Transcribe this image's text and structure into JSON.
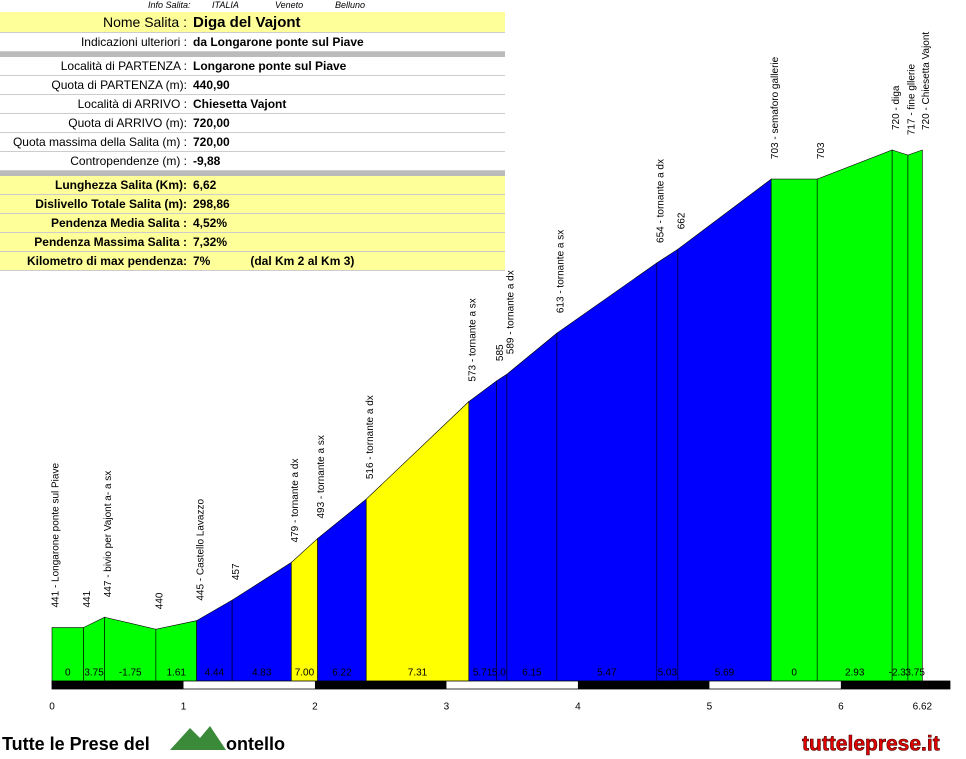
{
  "info": {
    "header": [
      "Info Salita:",
      "ITALIA",
      "Veneto",
      "Belluno"
    ],
    "title": [
      "Nome Salita :",
      "Diga del Vajont"
    ],
    "rows_top": [
      [
        "Indicazioni ulteriori :",
        "da Longarone ponte sul Piave"
      ]
    ],
    "rows_mid": [
      [
        "Località di PARTENZA :",
        "Longarone ponte sul Piave"
      ],
      [
        "Quota di PARTENZA (m):",
        "440,90"
      ],
      [
        "Località di ARRIVO :",
        "Chiesetta Vajont"
      ],
      [
        "Quota di ARRIVO (m):",
        "720,00"
      ],
      [
        "Quota massima della Salita (m) :",
        "720,00"
      ],
      [
        "Contropendenze (m) :",
        "-9,88"
      ]
    ],
    "rows_bottom": [
      [
        "Lunghezza Salita (Km):",
        "6,62"
      ],
      [
        "Dislivello Totale Salita (m):",
        "298,86"
      ],
      [
        "Pendenza Media Salita :",
        "4,52%"
      ],
      [
        "Pendenza Massima Salita :",
        "7,32%"
      ],
      [
        "Kilometro di max pendenza:",
        "7%",
        "(dal Km 2 al Km 3)"
      ]
    ]
  },
  "chart_data": {
    "type": "area",
    "x": [
      0,
      0.24,
      0.4,
      0.79,
      1.1,
      1.37,
      1.82,
      2.02,
      2.39,
      3.17,
      3.38,
      3.46,
      3.84,
      4.6,
      4.76,
      5.47,
      5.82,
      6.39,
      6.51,
      6.62
    ],
    "values": [
      441,
      441,
      447,
      440,
      445,
      457,
      479,
      493,
      516,
      573,
      585,
      589,
      613,
      654,
      662,
      703,
      703,
      720,
      717,
      720
    ],
    "point_labels": [
      "441 - Longarone ponte sul Piave",
      "441",
      "447 - bivio per Vajont a- a sx",
      "440",
      "445 - Castello Lavazzo",
      "457",
      "479 - tornante a dx",
      "493 - tornante a sx",
      "516 - tornante a dx",
      "573 - tornante a sx",
      "585",
      "589 - tornante a dx",
      "613 - tornante a sx",
      "654 - tornante a dx",
      "662",
      "703 - semaforo gallerie",
      "703",
      "720 - diga",
      "717 - fine gllerie",
      "720 - Chiesetta Vajont"
    ],
    "gradient_labels": [
      "0",
      "3.75",
      "-1.75",
      "1.61",
      "4.44",
      "4.83",
      "7.00",
      "6.22",
      "7.31",
      "5.71",
      "5.00",
      "6.15",
      "5.47",
      "5.03",
      "5.69",
      "0",
      "2.93",
      "-2.31",
      "3.75"
    ],
    "segment_colors": [
      "#00ff00",
      "#00ff00",
      "#00ff00",
      "#00ff00",
      "#0000ff",
      "#0000ff",
      "#ffff00",
      "#0000ff",
      "#ffff00",
      "#0000ff",
      "#0000ff",
      "#0000ff",
      "#0000ff",
      "#0000ff",
      "#0000ff",
      "#00ff00",
      "#00ff00",
      "#00ff00",
      "#00ff00"
    ],
    "xlim": [
      0,
      6.83
    ],
    "xticks": [
      0,
      1,
      2,
      3,
      4,
      5,
      6,
      6.62
    ],
    "ylim": [
      408,
      720
    ]
  },
  "footer": {
    "brand": "Tutte le Prese del",
    "brand_end": "ontello",
    "site": "tutteleprese.it"
  }
}
